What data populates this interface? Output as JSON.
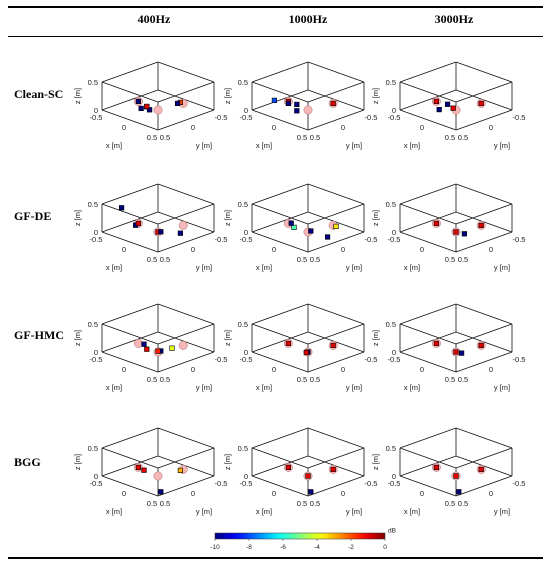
{
  "table": {
    "columns": [
      "400Hz",
      "1000Hz",
      "3000Hz"
    ],
    "rows": [
      "Clean-SC",
      "GF-DE",
      "GF-HMC",
      "BGG"
    ]
  },
  "axes": {
    "xlabel": "x [m]",
    "ylabel": "y [m]",
    "zlabel": "z [m]",
    "x_ticks": [
      "-0.5",
      "0",
      "0.5"
    ],
    "y_ticks": [
      "-0.5",
      "0",
      "0.5"
    ],
    "z_ticks": [
      "0",
      "0.5"
    ]
  },
  "colorbar": {
    "unit": "dB",
    "ticks": [
      "-10",
      "-8",
      "-6",
      "-4",
      "-2",
      "0"
    ],
    "min": -10,
    "max": 0,
    "colormap": "jet"
  },
  "chart_data": {
    "type": "scatter",
    "coordinate_space": "3D, x/y/z in metres",
    "xlim": [
      -0.5,
      0.5
    ],
    "ylim": [
      -0.5,
      0.5
    ],
    "zlim": [
      0,
      0.5
    ],
    "true_sources": [
      {
        "x": -0.25,
        "y": 0.1,
        "z": 0.1
      },
      {
        "x": 0.0,
        "y": 0.0,
        "z": 0.0
      },
      {
        "x": 0.2,
        "y": -0.25,
        "z": 0.1
      }
    ],
    "panels": [
      {
        "method": "Clean-SC",
        "frequency": "400Hz",
        "points": [
          {
            "x": -0.25,
            "y": 0.1,
            "z": 0.1,
            "db": -10
          },
          {
            "x": -0.05,
            "y": 0.25,
            "z": 0.1,
            "db": -10
          },
          {
            "x": 0.15,
            "y": -0.25,
            "z": 0.1,
            "db": -2
          },
          {
            "x": 0.15,
            "y": -0.2,
            "z": 0.1,
            "db": -10
          },
          {
            "x": 0.1,
            "y": 0.3,
            "z": 0.2,
            "db": -10
          },
          {
            "x": -0.15,
            "y": 0.0,
            "z": -0.05,
            "db": -10
          },
          {
            "x": -0.05,
            "y": 0.15,
            "z": 0.1,
            "db": -1
          }
        ]
      },
      {
        "method": "Clean-SC",
        "frequency": "1000Hz",
        "points": [
          {
            "x": -0.25,
            "y": 0.1,
            "z": 0.1,
            "db": -1
          },
          {
            "x": -0.2,
            "y": 0.15,
            "z": 0.1,
            "db": -10
          },
          {
            "x": -0.4,
            "y": 0.2,
            "z": 0.1,
            "db": -8
          },
          {
            "x": -0.1,
            "y": 0.1,
            "z": 0.1,
            "db": -10
          },
          {
            "x": 0.2,
            "y": 0.4,
            "z": 0.2,
            "db": -10
          },
          {
            "x": 0.2,
            "y": -0.25,
            "z": 0.1,
            "db": -1
          }
        ]
      },
      {
        "method": "Clean-SC",
        "frequency": "3000Hz",
        "points": [
          {
            "x": -0.25,
            "y": 0.1,
            "z": 0.1,
            "db": -1
          },
          {
            "x": -0.05,
            "y": 0.1,
            "z": 0.12,
            "db": -10
          },
          {
            "x": 0.0,
            "y": 0.05,
            "z": 0.05,
            "db": -1
          },
          {
            "x": 0.2,
            "y": -0.25,
            "z": 0.1,
            "db": -1
          },
          {
            "x": 0.05,
            "y": 0.35,
            "z": 0.15,
            "db": -10
          }
        ]
      },
      {
        "method": "GF-DE",
        "frequency": "400Hz",
        "points": [
          {
            "x": -0.3,
            "y": 0.1,
            "z": 0.05,
            "db": -10
          },
          {
            "x": -0.25,
            "y": 0.1,
            "z": 0.1,
            "db": -1
          },
          {
            "x": 0.0,
            "y": 0.0,
            "z": 0.0,
            "db": -1
          },
          {
            "x": -0.05,
            "y": -0.1,
            "z": -0.05,
            "db": -10
          },
          {
            "x": 0.3,
            "y": -0.1,
            "z": 0.05,
            "db": -10
          },
          {
            "x": -0.3,
            "y": 0.35,
            "z": 0.45,
            "db": -10
          }
        ]
      },
      {
        "method": "GF-DE",
        "frequency": "1000Hz",
        "points": [
          {
            "x": -0.1,
            "y": 0.15,
            "z": 0.1,
            "db": -5.5
          },
          {
            "x": 0.25,
            "y": -0.25,
            "z": 0.1,
            "db": -3.5
          },
          {
            "x": 0.0,
            "y": -0.05,
            "z": 0.0,
            "db": -10
          },
          {
            "x": -0.3,
            "y": 0.0,
            "z": 0.05,
            "db": -10
          },
          {
            "x": 0.3,
            "y": -0.05,
            "z": 0.0,
            "db": -10
          }
        ]
      },
      {
        "method": "GF-DE",
        "frequency": "3000Hz",
        "points": [
          {
            "x": -0.25,
            "y": 0.1,
            "z": 0.1,
            "db": -1
          },
          {
            "x": 0.0,
            "y": 0.0,
            "z": 0.0,
            "db": -1
          },
          {
            "x": 0.2,
            "y": -0.25,
            "z": 0.1,
            "db": -1
          },
          {
            "x": 0.05,
            "y": -0.1,
            "z": -0.05,
            "db": -10
          }
        ]
      },
      {
        "method": "GF-HMC",
        "frequency": "400Hz",
        "points": [
          {
            "x": -0.25,
            "y": 0.0,
            "z": 0.05,
            "db": -10
          },
          {
            "x": -0.1,
            "y": 0.1,
            "z": 0.05,
            "db": -1
          },
          {
            "x": 0.0,
            "y": -0.05,
            "z": 0.0,
            "db": -10
          },
          {
            "x": 0.1,
            "y": -0.15,
            "z": 0.05,
            "db": -4
          },
          {
            "x": 0.05,
            "y": 0.05,
            "z": 0.05,
            "db": -1.5
          }
        ]
      },
      {
        "method": "GF-HMC",
        "frequency": "1000Hz",
        "points": [
          {
            "x": -0.25,
            "y": 0.1,
            "z": 0.1,
            "db": -1
          },
          {
            "x": 0.0,
            "y": 0.0,
            "z": 0.0,
            "db": -10
          },
          {
            "x": 0.0,
            "y": 0.03,
            "z": 0.0,
            "db": -1
          },
          {
            "x": 0.2,
            "y": -0.25,
            "z": 0.1,
            "db": -1
          }
        ]
      },
      {
        "method": "GF-HMC",
        "frequency": "3000Hz",
        "points": [
          {
            "x": -0.25,
            "y": 0.1,
            "z": 0.1,
            "db": -1
          },
          {
            "x": 0.0,
            "y": 0.0,
            "z": 0.0,
            "db": -1
          },
          {
            "x": 0.05,
            "y": -0.05,
            "z": -0.02,
            "db": -10
          },
          {
            "x": 0.2,
            "y": -0.25,
            "z": 0.1,
            "db": -1
          }
        ]
      },
      {
        "method": "BGG",
        "frequency": "400Hz",
        "points": [
          {
            "x": -0.25,
            "y": 0.1,
            "z": 0.1,
            "db": -1
          },
          {
            "x": -0.2,
            "y": 0.05,
            "z": 0.05,
            "db": -1
          },
          {
            "x": 0.2,
            "y": -0.2,
            "z": 0.1,
            "db": -3
          },
          {
            "x": 0.0,
            "y": -0.05,
            "z": -0.3,
            "db": -10
          }
        ]
      },
      {
        "method": "BGG",
        "frequency": "1000Hz",
        "points": [
          {
            "x": -0.25,
            "y": 0.1,
            "z": 0.1,
            "db": -1
          },
          {
            "x": 0.0,
            "y": 0.0,
            "z": 0.0,
            "db": -1
          },
          {
            "x": 0.2,
            "y": -0.25,
            "z": 0.1,
            "db": -1
          },
          {
            "x": 0.0,
            "y": -0.05,
            "z": -0.3,
            "db": -10
          }
        ]
      },
      {
        "method": "BGG",
        "frequency": "3000Hz",
        "points": [
          {
            "x": -0.25,
            "y": 0.1,
            "z": 0.1,
            "db": -1
          },
          {
            "x": 0.0,
            "y": 0.0,
            "z": 0.0,
            "db": -1
          },
          {
            "x": 0.2,
            "y": -0.25,
            "z": 0.1,
            "db": -1
          },
          {
            "x": 0.0,
            "y": -0.05,
            "z": -0.3,
            "db": -10
          }
        ]
      }
    ]
  }
}
